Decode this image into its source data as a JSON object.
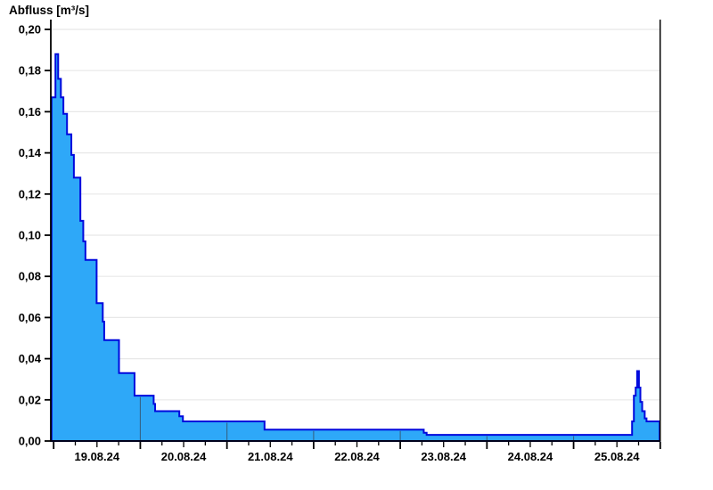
{
  "chart_data": {
    "type": "area",
    "title": "Abfluss [m³/s]",
    "x_axis": {
      "start": "19.08.24 00:00",
      "end": "26.08.24 00:00",
      "labels": [
        "19.08.24",
        "20.08.24",
        "21.08.24",
        "22.08.24",
        "23.08.24",
        "24.08.24",
        "25.08.24"
      ],
      "label_position": "noon-of-day",
      "major_tick_every_hours": 24,
      "noon_tick_every_hours": 12,
      "minor_tick_every_hours": 6
    },
    "y_axis": {
      "min": 0,
      "max": 0.2048,
      "tick_step": 0.02,
      "tick_values": [
        0,
        0.02,
        0.04,
        0.06,
        0.08,
        0.1,
        0.12,
        0.14,
        0.16,
        0.18,
        0.2
      ],
      "tick_labels": [
        "0,00",
        "0,02",
        "0,04",
        "0,06",
        "0,08",
        "0,10",
        "0,12",
        "0,14",
        "0,16",
        "0,18",
        "0,20"
      ],
      "decimal_separator": "comma"
    },
    "grid": {
      "horizontal": true,
      "vertical_day_lines_clipped_to_area": true
    },
    "series": [
      {
        "name": "Abfluss",
        "unit": "m³/s",
        "step_mode": "after",
        "points_hours_from_start_and_value": [
          [
            0,
            0.167
          ],
          [
            0.5,
            0.188
          ],
          [
            1.25,
            0.176
          ],
          [
            2.0,
            0.167
          ],
          [
            2.7,
            0.159
          ],
          [
            3.7,
            0.149
          ],
          [
            4.9,
            0.139
          ],
          [
            5.6,
            0.128
          ],
          [
            7.4,
            0.107
          ],
          [
            8.2,
            0.097
          ],
          [
            8.8,
            0.088
          ],
          [
            11.9,
            0.067
          ],
          [
            13.6,
            0.058
          ],
          [
            14.0,
            0.049
          ],
          [
            18.1,
            0.033
          ],
          [
            22.4,
            0.022
          ],
          [
            27.7,
            0.018
          ],
          [
            28.1,
            0.0145
          ],
          [
            34.8,
            0.012
          ],
          [
            35.8,
            0.0095
          ],
          [
            58.4,
            0.0055
          ],
          [
            102.5,
            0.004
          ],
          [
            103.3,
            0.003
          ],
          [
            160.2,
            0.0095
          ],
          [
            160.7,
            0.022
          ],
          [
            161.2,
            0.026
          ],
          [
            161.6,
            0.034
          ],
          [
            162.1,
            0.026
          ],
          [
            162.5,
            0.019
          ],
          [
            163.0,
            0.0145
          ],
          [
            163.7,
            0.011
          ],
          [
            164.2,
            0.0095
          ],
          [
            168,
            0.0095
          ]
        ]
      }
    ],
    "colors": {
      "area_fill": "#2ea8f8",
      "area_line": "#0009dd",
      "grid_horizontal": "#e8e8e8",
      "grid_vertical_day": "rgba(55,75,95,0.75)",
      "axis": "#000000",
      "background": "#ffffff"
    }
  }
}
